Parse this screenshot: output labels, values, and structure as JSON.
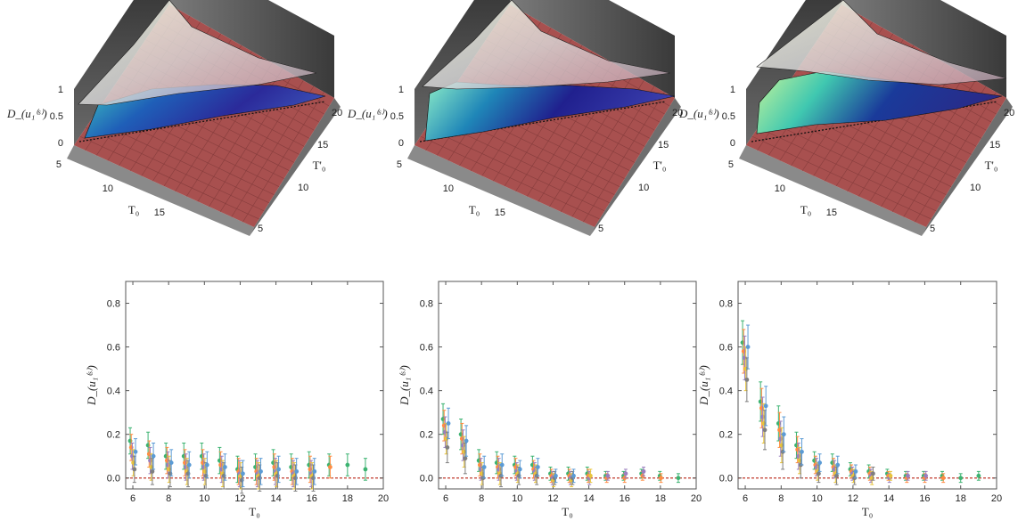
{
  "colors": {
    "floor": "#a8504f",
    "floor_grid": "#7e3838",
    "wall": "#454545",
    "upper_surface": "#d8d8d8",
    "zero_line": "#c0392b",
    "series": [
      "#3cb371",
      "#ff8c42",
      "#9b7fbf",
      "#e8c43c",
      "#7f7f7f",
      "#5b9bd5"
    ]
  },
  "surface_plots": [
    {
      "zlabel": "D_(u₁⁽ˢ⁾)",
      "xlabel": "T₀",
      "ylabel": "T'₀",
      "z_ticks": [
        "0",
        "0.5",
        "1"
      ],
      "x_ticks": [
        "5",
        "10",
        "15"
      ],
      "y_ticks": [
        "5",
        "10",
        "15",
        "20"
      ],
      "variant": "flat"
    },
    {
      "zlabel": "D_(u₁⁽ˢ⁾)",
      "xlabel": "T₀",
      "ylabel": "T'₀",
      "z_ticks": [
        "0",
        "0.5",
        "1"
      ],
      "x_ticks": [
        "5",
        "10",
        "15"
      ],
      "y_ticks": [
        "5",
        "10",
        "15",
        "20"
      ],
      "variant": "medium"
    },
    {
      "zlabel": "D_(u₁⁽ˢ⁾)",
      "xlabel": "T₀",
      "ylabel": "T'₀",
      "z_ticks": [
        "0",
        "0.5",
        "1"
      ],
      "x_ticks": [
        "5",
        "10",
        "15"
      ],
      "y_ticks": [
        "5",
        "10",
        "15",
        "20"
      ],
      "variant": "steep"
    }
  ],
  "chart_data": [
    {
      "type": "scatter",
      "title": "",
      "xlabel": "T₀",
      "ylabel": "D_(u₁⁽ˢ⁾)",
      "xlim": [
        5.6,
        20
      ],
      "ylim": [
        -0.05,
        0.9
      ],
      "x_ticks": [
        6,
        8,
        10,
        12,
        14,
        16,
        18,
        20
      ],
      "y_ticks": [
        "0.0",
        "0.2",
        "0.4",
        "0.6",
        "0.8"
      ],
      "zero_line": 0,
      "points": [
        {
          "x": 6,
          "y": [
            0.17,
            0.14,
            0.1,
            0.07,
            0.04,
            0.12
          ],
          "err": 0.06
        },
        {
          "x": 7,
          "y": [
            0.15,
            0.11,
            0.08,
            0.05,
            0.03,
            0.1
          ],
          "err": 0.06
        },
        {
          "x": 8,
          "y": [
            0.1,
            0.08,
            0.06,
            0.04,
            0.02,
            0.07
          ],
          "err": 0.06
        },
        {
          "x": 9,
          "y": [
            0.1,
            0.07,
            0.05,
            0.03,
            0.02,
            0.06
          ],
          "err": 0.06
        },
        {
          "x": 10,
          "y": [
            0.1,
            0.07,
            0.05,
            0.03,
            0.01,
            0.06
          ],
          "err": 0.06
        },
        {
          "x": 11,
          "y": [
            0.08,
            0.06,
            0.04,
            0.02,
            0.01,
            0.05
          ],
          "err": 0.06
        },
        {
          "x": 12,
          "y": [
            0.04,
            0.03,
            0.02,
            0.01,
            -0.01,
            0.02
          ],
          "err": 0.06
        },
        {
          "x": 13,
          "y": [
            0.05,
            0.03,
            0.02,
            0.01,
            0.0,
            0.03
          ],
          "err": 0.06
        },
        {
          "x": 14,
          "y": [
            0.07,
            0.05,
            0.03,
            0.02,
            0.01,
            0.04
          ],
          "err": 0.06
        },
        {
          "x": 15,
          "y": [
            0.05,
            0.03,
            0.02,
            0.01,
            0.0,
            0.03
          ],
          "err": 0.06
        },
        {
          "x": 16,
          "y": [
            0.06,
            0.04,
            0.02,
            0.01,
            0.0,
            0.03
          ],
          "err": 0.06
        },
        {
          "x": 17,
          "y": [
            0.06,
            0.05
          ],
          "err": 0.05
        },
        {
          "x": 18,
          "y": [
            0.06
          ],
          "err": 0.05
        },
        {
          "x": 19,
          "y": [
            0.04
          ],
          "err": 0.05
        }
      ]
    },
    {
      "type": "scatter",
      "title": "",
      "xlabel": "T₀",
      "ylabel": "D_(u₁⁽ˢ⁾)",
      "xlim": [
        5.6,
        20
      ],
      "ylim": [
        -0.05,
        0.9
      ],
      "x_ticks": [
        6,
        8,
        10,
        12,
        14,
        16,
        18,
        20
      ],
      "y_ticks": [
        "0.0",
        "0.2",
        "0.4",
        "0.6",
        "0.8"
      ],
      "zero_line": 0,
      "points": [
        {
          "x": 6,
          "y": [
            0.27,
            0.24,
            0.21,
            0.18,
            0.14,
            0.25
          ],
          "err": 0.07
        },
        {
          "x": 7,
          "y": [
            0.2,
            0.18,
            0.15,
            0.12,
            0.09,
            0.17
          ],
          "err": 0.07
        },
        {
          "x": 8,
          "y": [
            0.08,
            0.06,
            0.04,
            0.02,
            0.0,
            0.05
          ],
          "err": 0.05
        },
        {
          "x": 9,
          "y": [
            0.07,
            0.05,
            0.04,
            0.02,
            0.01,
            0.06
          ],
          "err": 0.05
        },
        {
          "x": 10,
          "y": [
            0.06,
            0.05,
            0.03,
            0.02,
            0.01,
            0.04
          ],
          "err": 0.04
        },
        {
          "x": 11,
          "y": [
            0.06,
            0.04,
            0.03,
            0.02,
            0.01,
            0.05
          ],
          "err": 0.04
        },
        {
          "x": 12,
          "y": [
            0.02,
            0.01,
            0.0,
            -0.01,
            0.0,
            0.01
          ],
          "err": 0.03
        },
        {
          "x": 13,
          "y": [
            0.02,
            0.01,
            0.0,
            -0.01,
            0.0,
            0.01
          ],
          "err": 0.03
        },
        {
          "x": 14,
          "y": [
            0.02,
            0.01,
            0.0,
            0.01
          ],
          "err": 0.03
        },
        {
          "x": 15,
          "y": [
            0.01,
            0.0,
            0.01
          ],
          "err": 0.02
        },
        {
          "x": 16,
          "y": [
            0.01,
            0.0,
            0.02
          ],
          "err": 0.02
        },
        {
          "x": 17,
          "y": [
            0.02,
            0.01,
            0.03
          ],
          "err": 0.02
        },
        {
          "x": 18,
          "y": [
            0.01,
            0.0
          ],
          "err": 0.02
        },
        {
          "x": 19,
          "y": [
            0.0
          ],
          "err": 0.02
        }
      ]
    },
    {
      "type": "scatter",
      "title": "",
      "xlabel": "T₀",
      "ylabel": "D_(u₁⁽ˢ⁾)",
      "xlim": [
        5.6,
        20
      ],
      "ylim": [
        -0.05,
        0.9
      ],
      "x_ticks": [
        6,
        8,
        10,
        12,
        14,
        16,
        18,
        20
      ],
      "y_ticks": [
        "0.0",
        "0.2",
        "0.4",
        "0.6",
        "0.8"
      ],
      "zero_line": 0,
      "points": [
        {
          "x": 6,
          "y": [
            0.62,
            0.58,
            0.55,
            0.5,
            0.45,
            0.6
          ],
          "err": 0.1
        },
        {
          "x": 7,
          "y": [
            0.35,
            0.32,
            0.28,
            0.25,
            0.22,
            0.33
          ],
          "err": 0.09
        },
        {
          "x": 8,
          "y": [
            0.25,
            0.22,
            0.18,
            0.15,
            0.12,
            0.2
          ],
          "err": 0.08
        },
        {
          "x": 9,
          "y": [
            0.15,
            0.13,
            0.1,
            0.08,
            0.06,
            0.12
          ],
          "err": 0.06
        },
        {
          "x": 10,
          "y": [
            0.08,
            0.06,
            0.05,
            0.03,
            0.02,
            0.07
          ],
          "err": 0.04
        },
        {
          "x": 11,
          "y": [
            0.07,
            0.05,
            0.04,
            0.02,
            0.01,
            0.06
          ],
          "err": 0.04
        },
        {
          "x": 12,
          "y": [
            0.04,
            0.03,
            0.02,
            0.01,
            0.0,
            0.03
          ],
          "err": 0.03
        },
        {
          "x": 13,
          "y": [
            0.03,
            0.02,
            0.01,
            0.0,
            0.02
          ],
          "err": 0.03
        },
        {
          "x": 14,
          "y": [
            0.02,
            0.01,
            0.0,
            0.01
          ],
          "err": 0.02
        },
        {
          "x": 15,
          "y": [
            0.01,
            0.0,
            0.01
          ],
          "err": 0.02
        },
        {
          "x": 16,
          "y": [
            0.01,
            0.0,
            0.01
          ],
          "err": 0.02
        },
        {
          "x": 17,
          "y": [
            0.01,
            0.0
          ],
          "err": 0.02
        },
        {
          "x": 18,
          "y": [
            0.0
          ],
          "err": 0.02
        },
        {
          "x": 19,
          "y": [
            0.01
          ],
          "err": 0.02
        }
      ]
    }
  ]
}
